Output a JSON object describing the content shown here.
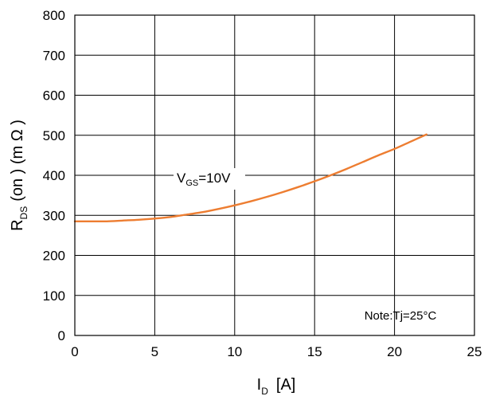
{
  "chart_data": {
    "type": "line",
    "title": "",
    "xlabel": {
      "main": "I",
      "sub": "D",
      "unit": "[A]"
    },
    "ylabel": {
      "main": "R",
      "sub": "DS",
      "rest": "(on ) (m Ω )"
    },
    "xlim": [
      0,
      25
    ],
    "ylim": [
      0,
      800
    ],
    "x_ticks": [
      0,
      5,
      10,
      15,
      20,
      25
    ],
    "y_ticks": [
      0,
      100,
      200,
      300,
      400,
      500,
      600,
      700,
      800
    ],
    "x_tick_labels": [
      "0",
      "5",
      "10",
      "15",
      "20",
      "25"
    ],
    "y_tick_labels": [
      "0",
      "100",
      "200",
      "300",
      "400",
      "500",
      "600",
      "700",
      "800"
    ],
    "grid": true,
    "series": [
      {
        "name": "VGS=10V",
        "label": {
          "main": "V",
          "sub": "GS",
          "rest": "=10V"
        },
        "color": "#ED7D31",
        "x": [
          0,
          1,
          2,
          3,
          4,
          5,
          6,
          7,
          8,
          9,
          10,
          11,
          12,
          13,
          14,
          15,
          16,
          17,
          18,
          19,
          20,
          21,
          22
        ],
        "y": [
          285,
          285,
          285,
          287,
          289,
          292,
          296,
          302,
          308,
          316,
          325,
          335,
          346,
          358,
          371,
          385,
          400,
          416,
          433,
          450,
          466,
          484,
          502
        ]
      }
    ],
    "annotations": [
      {
        "text": "Note:Tj=25°C"
      }
    ]
  }
}
